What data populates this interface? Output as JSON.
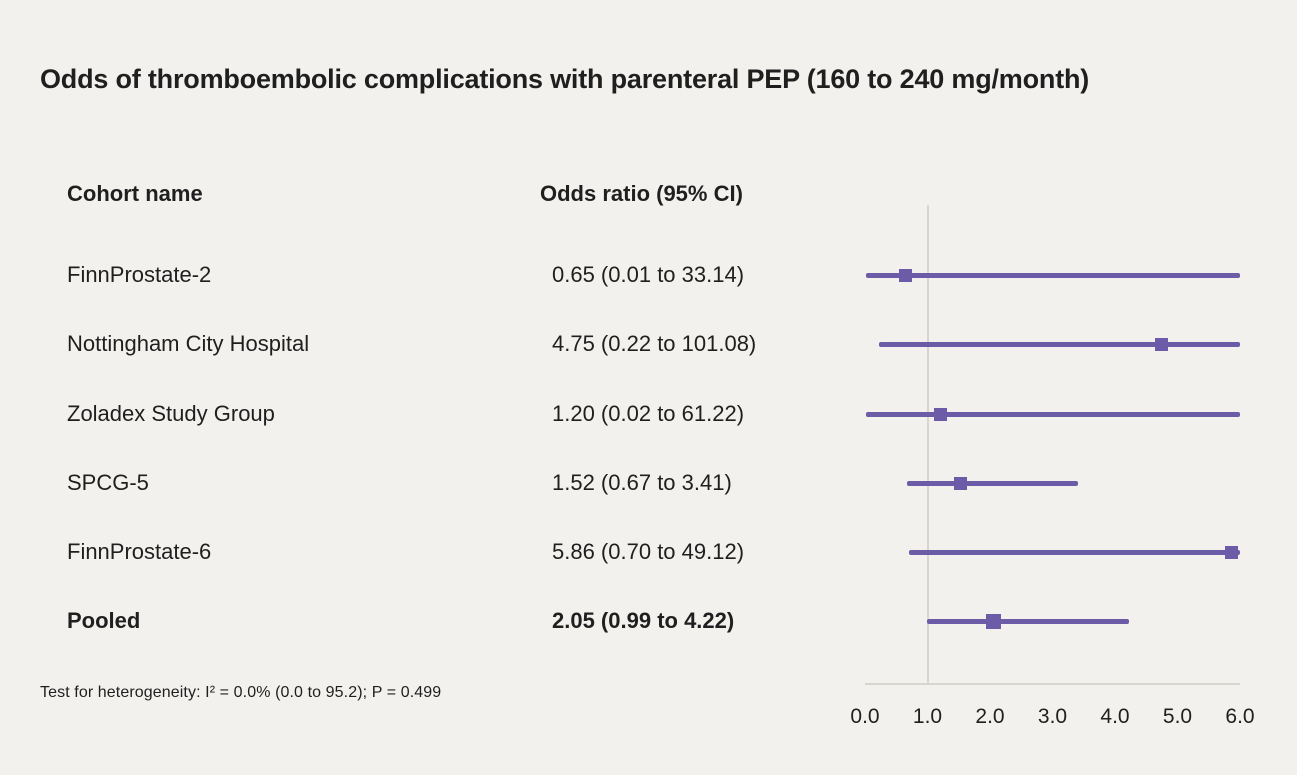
{
  "title": "Odds of thromboembolic complications with parenteral PEP (160 to 240 mg/month)",
  "columns": {
    "cohort": "Cohort name",
    "odds_ratio": "Odds ratio (95% CI)"
  },
  "footnote": "Test for heterogeneity: I² = 0.0% (0.0 to 95.2); P = 0.499",
  "colors": {
    "accent": "#6c5ba7",
    "background": "#f2f1ee",
    "text": "#1f1f1f",
    "axis_line": "#d8d5d1"
  },
  "chart_data": {
    "type": "forest",
    "title": "Odds of thromboembolic complications with parenteral PEP (160 to 240 mg/month)",
    "xlabel": "",
    "xlim": [
      0.0,
      6.0
    ],
    "reference_line": 1.0,
    "x_tick_labels": [
      "0.0",
      "1.0",
      "2.0",
      "3.0",
      "4.0",
      "5.0",
      "6.0"
    ],
    "grid": false,
    "studies": [
      {
        "name": "FinnProstate-2",
        "or_label": "0.65 (0.01 to 33.14)",
        "or": 0.65,
        "ci_low": 0.01,
        "ci_high": 33.14,
        "bold": false
      },
      {
        "name": "Nottingham City Hospital",
        "or_label": "4.75 (0.22 to 101.08)",
        "or": 4.75,
        "ci_low": 0.22,
        "ci_high": 101.08,
        "bold": false
      },
      {
        "name": "Zoladex Study Group",
        "or_label": "1.20 (0.02 to 61.22)",
        "or": 1.2,
        "ci_low": 0.02,
        "ci_high": 61.22,
        "bold": false
      },
      {
        "name": "SPCG-5",
        "or_label": "1.52 (0.67 to 3.41)",
        "or": 1.52,
        "ci_low": 0.67,
        "ci_high": 3.41,
        "bold": false
      },
      {
        "name": "FinnProstate-6",
        "or_label": "5.86 (0.70 to 49.12)",
        "or": 5.86,
        "ci_low": 0.7,
        "ci_high": 49.12,
        "bold": false
      },
      {
        "name": "Pooled",
        "or_label": "2.05 (0.99 to 4.22)",
        "or": 2.05,
        "ci_low": 0.99,
        "ci_high": 4.22,
        "bold": true
      }
    ]
  }
}
